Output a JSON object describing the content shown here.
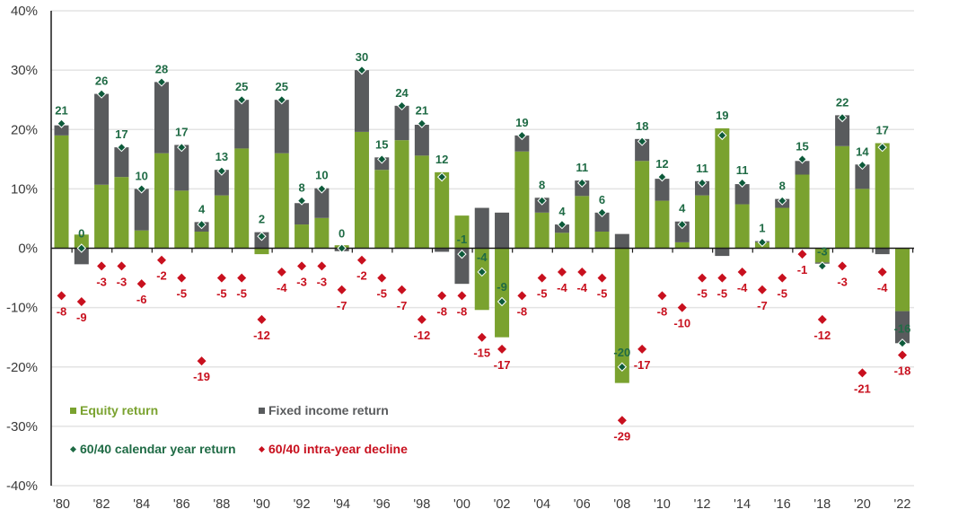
{
  "chart_data": {
    "type": "bar",
    "title": "",
    "xlabel": "",
    "ylabel": "",
    "ylim": [
      -40,
      40
    ],
    "yticks": [
      40,
      30,
      20,
      10,
      0,
      -10,
      -20,
      -30,
      -40
    ],
    "ytick_labels": [
      "40%",
      "30%",
      "20%",
      "10%",
      "0%",
      "-10%",
      "-20%",
      "-30%",
      "-40%"
    ],
    "grid": true,
    "categories": [
      "'80",
      "'81",
      "'82",
      "'83",
      "'84",
      "'85",
      "'86",
      "'87",
      "'88",
      "'89",
      "'90",
      "'91",
      "'92",
      "'93",
      "'94",
      "'95",
      "'96",
      "'97",
      "'98",
      "'99",
      "'00",
      "'01",
      "'02",
      "'03",
      "'04",
      "'05",
      "'06",
      "'07",
      "'08",
      "'09",
      "'10",
      "'11",
      "'12",
      "'13",
      "'14",
      "'15",
      "'16",
      "'17",
      "'18",
      "'19",
      "'20",
      "'21",
      "'22"
    ],
    "xtick_labels": [
      "'80",
      "'82",
      "'84",
      "'86",
      "'88",
      "'90",
      "'92",
      "'94",
      "'96",
      "'98",
      "'00",
      "'02",
      "'04",
      "'06",
      "'08",
      "'10",
      "'12",
      "'14",
      "'16",
      "'18",
      "'20",
      "'22"
    ],
    "colors": {
      "equity": "#7aa22f",
      "fixed_income": "#595b5d",
      "calendar_marker": "#0d5a3a",
      "calendar_label": "#1f6b45",
      "decline": "#c8101e",
      "grid": "#e3e3e3",
      "axis": "#1a1a1a"
    },
    "series": [
      {
        "name": "Equity return",
        "kind": "stacked-bar",
        "values": [
          19,
          2.3,
          10.7,
          12,
          3,
          16,
          9.7,
          2.8,
          8.9,
          16.8,
          -1,
          16,
          4,
          5.1,
          0.5,
          19.6,
          13.2,
          18.2,
          15.6,
          12.8,
          5.5,
          -10.4,
          -15,
          16.3,
          6,
          2.6,
          8.8,
          2.8,
          -22.7,
          14.7,
          8,
          1,
          8.9,
          20.2,
          7.4,
          1,
          6.8,
          12.4,
          -2.4,
          17.2,
          10,
          17.7,
          -10.6
        ]
      },
      {
        "name": "Fixed income return",
        "kind": "stacked-bar",
        "values": [
          1.7,
          -2.7,
          15.3,
          5,
          7,
          12,
          7.7,
          1.6,
          4.3,
          8.2,
          2.7,
          9,
          3.6,
          5,
          -0.5,
          10.4,
          2.1,
          5.8,
          5.2,
          -0.6,
          -6,
          6.8,
          6,
          2.7,
          2.5,
          1.4,
          2.6,
          3.2,
          2.4,
          3.7,
          3.7,
          3.5,
          2.4,
          -1.3,
          3.4,
          0.2,
          1.5,
          2.3,
          -0.2,
          5.2,
          4.1,
          -1,
          -5.4
        ]
      },
      {
        "name": "60/40 calendar year return",
        "kind": "marker",
        "values": [
          21,
          0,
          26,
          17,
          10,
          28,
          17,
          4,
          13,
          25,
          2,
          25,
          8,
          10,
          0,
          30,
          15,
          24,
          21,
          12,
          -1,
          -4,
          -9,
          19,
          8,
          4,
          11,
          6,
          -20,
          18,
          12,
          4,
          11,
          19,
          11,
          1,
          8,
          15,
          -3,
          22,
          14,
          17,
          -16
        ]
      },
      {
        "name": "60/40 intra-year decline",
        "kind": "marker",
        "values": [
          -8,
          -9,
          -3,
          -3,
          -6,
          -2,
          -5,
          -19,
          -5,
          -5,
          -12,
          -4,
          -3,
          -3,
          -7,
          -2,
          -5,
          -7,
          -12,
          -8,
          -8,
          -15,
          -17,
          -8,
          -5,
          -4,
          -4,
          -5,
          -29,
          -17,
          -8,
          -10,
          -5,
          -5,
          -4,
          -7,
          -5,
          -1,
          -12,
          -3,
          -21,
          -4,
          -18
        ]
      }
    ],
    "legend": {
      "placement": "bottom-left",
      "items": [
        {
          "label": "Equity return",
          "symbol": "square",
          "color": "#7aa22f"
        },
        {
          "label": "Fixed income return",
          "symbol": "square",
          "color": "#595b5d"
        },
        {
          "label": "60/40 calendar year return",
          "symbol": "diamond",
          "color": "#1f6b45"
        },
        {
          "label": "60/40 intra-year decline",
          "symbol": "diamond",
          "color": "#c8101e"
        }
      ]
    }
  }
}
